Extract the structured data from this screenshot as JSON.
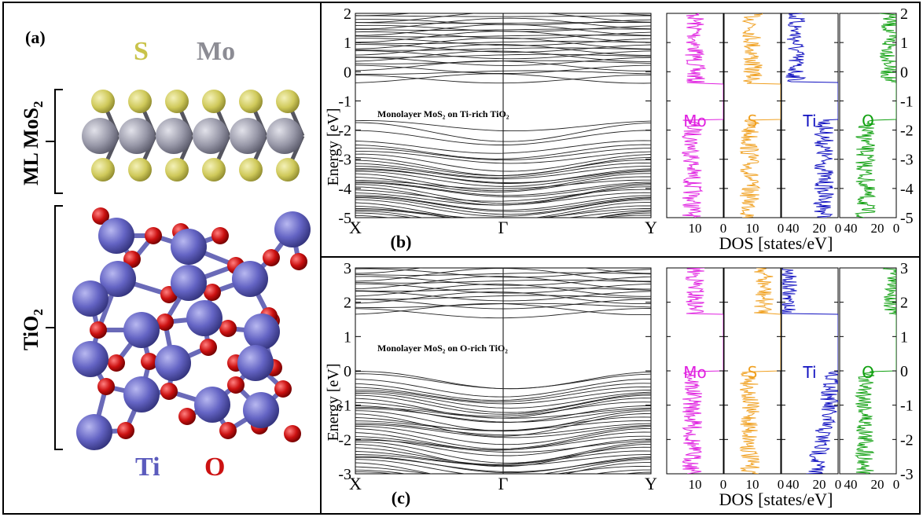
{
  "panel_a": {
    "label": "(a)",
    "mos2_label": "ML MoS",
    "mos2_sub": "2",
    "tio2_label": "TiO",
    "tio2_sub": "2",
    "legend_top": [
      {
        "text": "S",
        "color": "#c9c34a"
      },
      {
        "text": "Mo",
        "color": "#8c8c94"
      }
    ],
    "legend_bottom": [
      {
        "text": "Ti",
        "color": "#5b5bbd"
      },
      {
        "text": "O",
        "color": "#cc1111"
      }
    ],
    "colors": {
      "S": "#d6d173",
      "Mo": "#9a9aa8",
      "Ti": "#6a6ac8",
      "O": "#cc1111",
      "bond": "#7070c0"
    }
  },
  "chart_data": [
    {
      "type": "line",
      "panel_label": "(b)",
      "annotation": "Monolayer MoS₂ on Ti-rich TiO₂",
      "ylabel": "Energy  [eV]",
      "xlabel": "",
      "xticks": [
        "X",
        "Γ",
        "Y"
      ],
      "ylim": [
        -5,
        2
      ],
      "yticks": [
        2,
        1,
        0,
        -1,
        -2,
        -3,
        -4,
        -5
      ],
      "bands_valence": [
        -1.68,
        -1.78,
        -2.05,
        -2.38,
        -2.48,
        -2.58,
        -2.72,
        -2.85,
        -2.98,
        -3.05,
        -3.12,
        -3.2,
        -3.3,
        -3.38,
        -3.45,
        -3.52,
        -3.6,
        -3.68,
        -3.75,
        -3.82,
        -3.9,
        -3.98,
        -4.05,
        -4.12,
        -4.2,
        -4.28,
        -4.35,
        -4.42,
        -4.5,
        -4.58,
        -4.65,
        -4.72,
        -4.8,
        -4.88,
        -4.95
      ],
      "bands_conduction": [
        -0.38,
        -0.15,
        -0.05,
        0.05,
        0.18,
        0.3,
        0.38,
        0.45,
        0.52,
        0.6,
        0.68,
        0.75,
        0.82,
        0.9,
        0.98,
        1.05,
        1.12,
        1.2,
        1.28,
        1.35,
        1.42,
        1.5,
        1.58,
        1.65,
        1.72,
        1.8,
        1.88,
        1.95
      ],
      "dos_xlabel": "DOS [states/eV]",
      "dos_panels": [
        {
          "species": "Mo",
          "color": "#e020e0",
          "xticks": [
            "10"
          ],
          "xmax": 20
        },
        {
          "species": "S",
          "color": "#f0a020",
          "xticks": [
            "10"
          ],
          "xmax": 20
        },
        {
          "species": "Ti",
          "color": "#1010c0",
          "xticks": [
            "40",
            "20"
          ],
          "xmax": 60
        },
        {
          "species": "O",
          "color": "#10a010",
          "xticks": [
            "40",
            "20"
          ],
          "xmax": 60
        }
      ],
      "dos_tick_zero": "0"
    },
    {
      "type": "line",
      "panel_label": "(c)",
      "annotation": "Monolayer MoS₂ on O-rich TiO₂",
      "ylabel": "Energy  [eV]",
      "xlabel": "",
      "xticks": [
        "X",
        "Γ",
        "Y"
      ],
      "ylim": [
        -3,
        3
      ],
      "yticks": [
        3,
        2,
        1,
        0,
        -1,
        -2,
        -3
      ],
      "bands_valence": [
        -0.02,
        -0.12,
        -0.28,
        -0.38,
        -0.45,
        -0.52,
        -0.6,
        -0.68,
        -0.75,
        -0.82,
        -0.9,
        -0.98,
        -1.05,
        -1.12,
        -1.2,
        -1.28,
        -1.35,
        -1.42,
        -1.5,
        -1.58,
        -1.65,
        -1.72,
        -1.8,
        -1.88,
        -1.95,
        -2.02,
        -2.1,
        -2.18,
        -2.25,
        -2.32,
        -2.4,
        -2.48,
        -2.55,
        -2.62,
        -2.7,
        -2.78,
        -2.85,
        -2.92
      ],
      "bands_conduction": [
        1.65,
        1.78,
        1.88,
        1.98,
        2.05,
        2.12,
        2.2,
        2.28,
        2.35,
        2.42,
        2.5,
        2.58,
        2.65,
        2.72,
        2.8,
        2.88,
        2.95
      ],
      "dos_xlabel": "DOS [states/eV]",
      "dos_panels": [
        {
          "species": "Mo",
          "color": "#e020e0",
          "xticks": [
            "10"
          ],
          "xmax": 20
        },
        {
          "species": "S",
          "color": "#f0a020",
          "xticks": [
            "10"
          ],
          "xmax": 20
        },
        {
          "species": "Ti",
          "color": "#1010c0",
          "xticks": [
            "40",
            "20"
          ],
          "xmax": 60
        },
        {
          "species": "O",
          "color": "#10a010",
          "xticks": [
            "40",
            "20"
          ],
          "xmax": 60
        }
      ],
      "dos_tick_zero": "0"
    }
  ]
}
